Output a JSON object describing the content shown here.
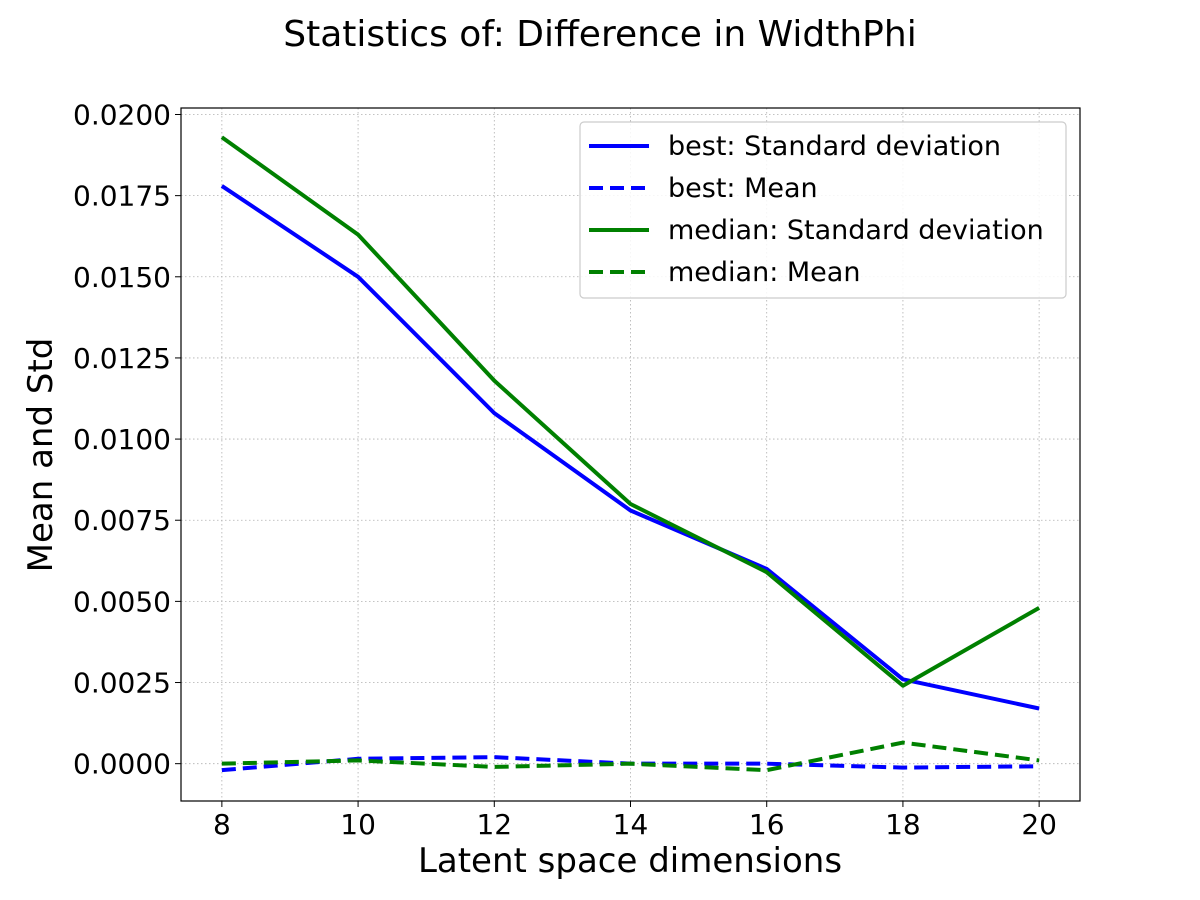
{
  "chart_data": {
    "type": "line",
    "title": "Statistics of: Difference in WidthPhi",
    "xlabel": "Latent space dimensions",
    "ylabel": "Mean and Std",
    "x": [
      8,
      10,
      12,
      14,
      16,
      18,
      20
    ],
    "xticks": [
      "8",
      "10",
      "12",
      "14",
      "16",
      "18",
      "20"
    ],
    "yticks": [
      0.0,
      0.0025,
      0.005,
      0.0075,
      0.01,
      0.0125,
      0.015,
      0.0175,
      0.02
    ],
    "ytick_labels": [
      "0.0000",
      "0.0025",
      "0.0050",
      "0.0075",
      "0.0100",
      "0.0125",
      "0.0150",
      "0.0175",
      "0.0200"
    ],
    "xlim": [
      7.4,
      20.6
    ],
    "ylim": [
      -0.00115,
      0.0202
    ],
    "grid": true,
    "legend_position": "top-right",
    "series": [
      {
        "name": "best: Standard deviation",
        "color": "#0000ff",
        "dashed": false,
        "values": [
          0.0178,
          0.015,
          0.0108,
          0.0078,
          0.006,
          0.0026,
          0.0017
        ]
      },
      {
        "name": "best: Mean",
        "color": "#0000ff",
        "dashed": true,
        "values": [
          -0.0002,
          0.00015,
          0.0002,
          0.0,
          0.0,
          -0.00012,
          -8e-05
        ]
      },
      {
        "name": "median: Standard deviation",
        "color": "#008000",
        "dashed": false,
        "values": [
          0.0193,
          0.0163,
          0.0118,
          0.008,
          0.0059,
          0.0024,
          0.0048
        ]
      },
      {
        "name": "median: Mean",
        "color": "#008000",
        "dashed": true,
        "values": [
          0.0,
          0.0001,
          -0.0001,
          0.0,
          -0.0002,
          0.00065,
          0.0001
        ]
      }
    ]
  }
}
